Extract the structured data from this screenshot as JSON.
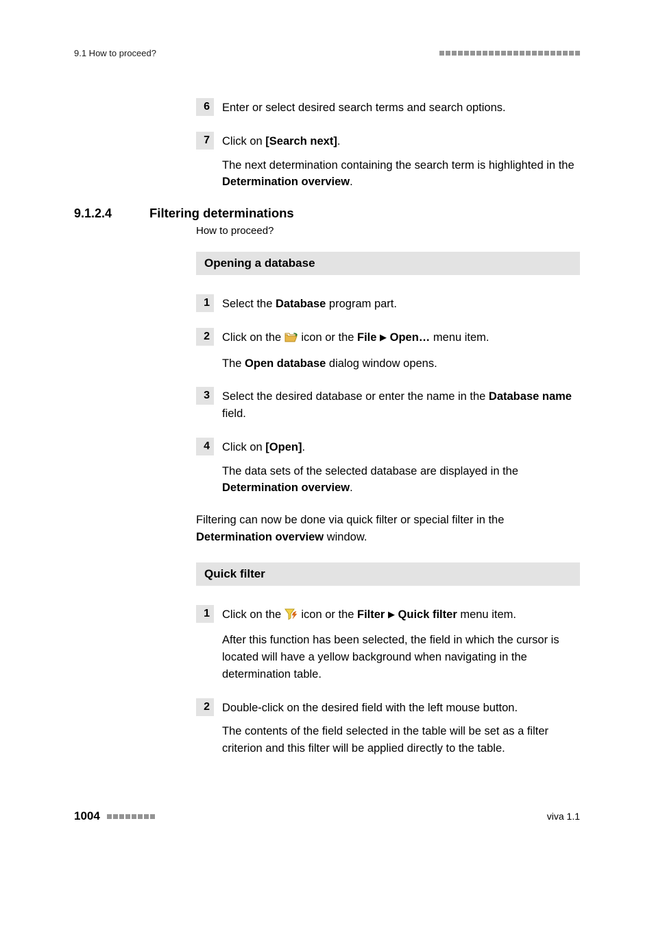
{
  "header": {
    "left": "9.1 How to proceed?",
    "dot_count": 23,
    "dot_color": "#949494"
  },
  "top_steps": [
    {
      "num": "6",
      "lines": [
        {
          "segments": [
            {
              "t": "Enter or select desired search terms and search options."
            }
          ]
        }
      ]
    },
    {
      "num": "7",
      "lines": [
        {
          "segments": [
            {
              "t": "Click on "
            },
            {
              "t": "[Search next]",
              "b": true
            },
            {
              "t": "."
            }
          ]
        },
        {
          "segments": [
            {
              "t": "The next determination containing the search term is highlighted in the "
            },
            {
              "t": "Determination overview",
              "b": true
            },
            {
              "t": "."
            }
          ]
        }
      ]
    }
  ],
  "section": {
    "num": "9.1.2.4",
    "title": "Filtering determinations",
    "subtitle": "How to proceed?"
  },
  "block1": {
    "banner": "Opening a database",
    "steps": [
      {
        "num": "1",
        "lines": [
          {
            "segments": [
              {
                "t": "Select the "
              },
              {
                "t": "Database",
                "b": true
              },
              {
                "t": " program part."
              }
            ]
          }
        ]
      },
      {
        "num": "2",
        "lines": [
          {
            "segments": [
              {
                "t": "Click on the "
              },
              {
                "icon": "open"
              },
              {
                "t": " icon or the "
              },
              {
                "t": "File",
                "b": true
              },
              {
                "t": " "
              },
              {
                "tri": true
              },
              {
                "t": " "
              },
              {
                "t": "Open…",
                "b": true
              },
              {
                "t": " menu item."
              }
            ]
          },
          {
            "segments": [
              {
                "t": "The "
              },
              {
                "t": "Open database",
                "b": true
              },
              {
                "t": " dialog window opens."
              }
            ]
          }
        ]
      },
      {
        "num": "3",
        "lines": [
          {
            "segments": [
              {
                "t": "Select the desired database or enter the name in the "
              },
              {
                "t": "Database name",
                "b": true
              },
              {
                "t": " field."
              }
            ]
          }
        ]
      },
      {
        "num": "4",
        "lines": [
          {
            "segments": [
              {
                "t": "Click on "
              },
              {
                "t": "[Open]",
                "b": true
              },
              {
                "t": "."
              }
            ]
          },
          {
            "segments": [
              {
                "t": "The data sets of the selected database are displayed in the "
              },
              {
                "t": "Determination overview",
                "b": true
              },
              {
                "t": "."
              }
            ]
          }
        ]
      }
    ]
  },
  "mid_para": {
    "segments": [
      {
        "t": "Filtering can now be done via quick filter or special filter in the "
      },
      {
        "t": "Determination overview",
        "b": true
      },
      {
        "t": " window."
      }
    ]
  },
  "block2": {
    "banner": "Quick filter",
    "steps": [
      {
        "num": "1",
        "lines": [
          {
            "segments": [
              {
                "t": "Click on the "
              },
              {
                "icon": "filter"
              },
              {
                "t": " icon or the "
              },
              {
                "t": "Filter",
                "b": true
              },
              {
                "t": " "
              },
              {
                "tri": true
              },
              {
                "t": " "
              },
              {
                "t": "Quick filter",
                "b": true
              },
              {
                "t": " menu item."
              }
            ]
          },
          {
            "segments": [
              {
                "t": "After this function has been selected, the field in which the cursor is located will have a yellow background when navigating in the determination table."
              }
            ]
          }
        ]
      },
      {
        "num": "2",
        "lines": [
          {
            "segments": [
              {
                "t": "Double-click on the desired field with the left mouse button."
              }
            ]
          },
          {
            "segments": [
              {
                "t": "The contents of the field selected in the table will be set as a filter criterion and this filter will be applied directly to the table."
              }
            ]
          }
        ]
      }
    ]
  },
  "footer": {
    "page": "1004",
    "dot_count": 8,
    "dot_color": "#949494",
    "right": "viva 1.1"
  },
  "icons": {
    "open": {
      "folder_fill": "#e9b84a",
      "folder_stroke": "#b88a1a",
      "arrow": "#2a7a2a"
    },
    "filter": {
      "funnel_fill": "#f3d24a",
      "funnel_stroke": "#b89a1a",
      "bolt": "#d86a1a"
    }
  }
}
